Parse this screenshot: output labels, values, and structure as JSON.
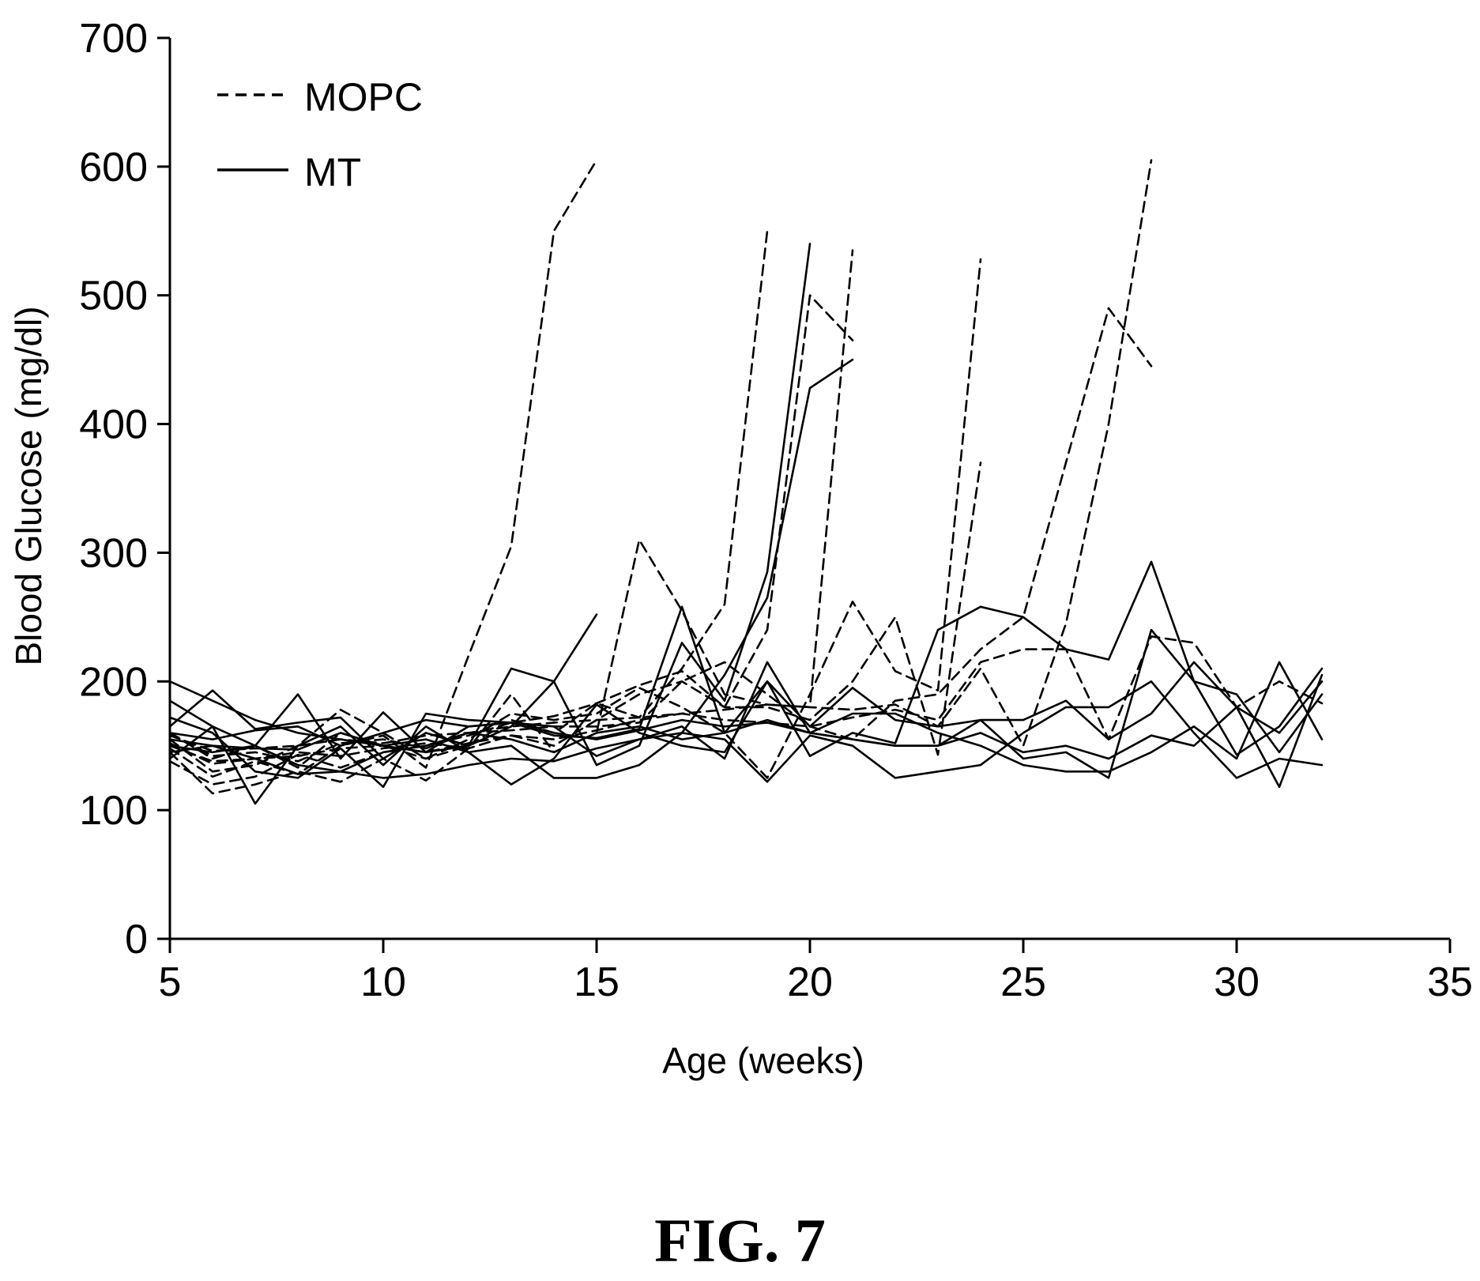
{
  "figure": {
    "caption": "FIG. 7"
  },
  "chart_data": {
    "type": "line",
    "title": "",
    "xlabel": "Age (weeks)",
    "ylabel": "Blood Glucose (mg/dl)",
    "xlim": [
      5,
      35
    ],
    "ylim": [
      0,
      700
    ],
    "xticks": [
      5,
      10,
      15,
      20,
      25,
      30,
      35
    ],
    "yticks": [
      0,
      100,
      200,
      300,
      400,
      500,
      600,
      700
    ],
    "grid": false,
    "legend": {
      "position": "top-left",
      "entries": [
        {
          "label": "MOPC",
          "style": "dashed"
        },
        {
          "label": "MT",
          "style": "solid"
        }
      ]
    },
    "series": [
      {
        "group": "MOPC",
        "x": [
          5,
          6,
          7,
          8,
          9,
          10,
          11,
          12,
          13,
          14,
          15
        ],
        "y": [
          148,
          126,
          138,
          128,
          150,
          158,
          133,
          220,
          305,
          550,
          605
        ]
      },
      {
        "group": "MOPC",
        "x": [
          5,
          6,
          7,
          8,
          9,
          10,
          11,
          12,
          13,
          14,
          15,
          16,
          17,
          18,
          19
        ],
        "y": [
          160,
          140,
          150,
          133,
          160,
          150,
          140,
          150,
          170,
          160,
          183,
          172,
          210,
          260,
          550
        ]
      },
      {
        "group": "MOPC",
        "x": [
          5,
          6,
          7,
          8,
          9,
          10,
          11,
          12,
          13,
          14,
          15,
          16,
          17,
          18,
          19,
          20,
          21
        ],
        "y": [
          138,
          120,
          126,
          143,
          133,
          145,
          150,
          158,
          168,
          173,
          183,
          197,
          208,
          180,
          240,
          500,
          465
        ]
      },
      {
        "group": "MOPC",
        "x": [
          5,
          6,
          7,
          8,
          9,
          10,
          11,
          12,
          13,
          14,
          15,
          16,
          17,
          18,
          19,
          20,
          21
        ],
        "y": [
          145,
          113,
          120,
          130,
          122,
          140,
          123,
          148,
          190,
          145,
          160,
          310,
          255,
          190,
          182,
          180,
          535
        ]
      },
      {
        "group": "MOPC",
        "x": [
          5,
          6,
          7,
          8,
          9,
          10,
          11,
          12,
          13,
          14,
          15,
          16,
          17,
          18,
          19,
          20,
          21,
          22,
          23,
          24
        ],
        "y": [
          155,
          130,
          135,
          150,
          178,
          160,
          140,
          155,
          175,
          170,
          175,
          195,
          180,
          160,
          125,
          190,
          262,
          208,
          193,
          528
        ]
      },
      {
        "group": "MOPC",
        "x": [
          5,
          6,
          7,
          8,
          9,
          10,
          11,
          12,
          13,
          14,
          15,
          16,
          17,
          18,
          19,
          20,
          21,
          22,
          23,
          24
        ],
        "y": [
          150,
          138,
          140,
          145,
          142,
          148,
          152,
          148,
          158,
          150,
          170,
          190,
          200,
          180,
          180,
          170,
          200,
          250,
          143,
          370
        ]
      },
      {
        "group": "MOPC",
        "x": [
          5,
          6,
          7,
          8,
          9,
          10,
          11,
          12,
          13,
          14,
          15,
          16,
          17,
          18,
          19,
          20,
          21,
          22,
          23,
          24,
          25,
          26,
          27,
          28
        ],
        "y": [
          160,
          142,
          145,
          138,
          152,
          155,
          148,
          160,
          162,
          165,
          165,
          168,
          200,
          215,
          190,
          165,
          155,
          185,
          190,
          225,
          250,
          370,
          490,
          445
        ]
      },
      {
        "group": "MOPC",
        "x": [
          5,
          6,
          7,
          8,
          9,
          10,
          11,
          12,
          13,
          14,
          15,
          16,
          17,
          18,
          19,
          20,
          21,
          22,
          23,
          24,
          25,
          26,
          27,
          28
        ],
        "y": [
          152,
          136,
          140,
          142,
          148,
          150,
          145,
          152,
          158,
          155,
          162,
          170,
          175,
          178,
          182,
          180,
          178,
          182,
          165,
          210,
          150,
          245,
          400,
          605
        ]
      },
      {
        "group": "MOPC",
        "x": [
          5,
          6,
          7,
          8,
          9,
          10,
          11,
          12,
          13,
          14,
          15,
          16,
          17,
          18,
          19,
          20,
          21,
          22,
          23,
          24,
          25,
          26,
          27,
          28,
          29,
          30,
          31,
          32
        ],
        "y": [
          158,
          146,
          148,
          150,
          155,
          152,
          158,
          160,
          165,
          168,
          170,
          172,
          175,
          170,
          168,
          165,
          172,
          178,
          170,
          215,
          225,
          225,
          155,
          235,
          230,
          180,
          200,
          183
        ]
      },
      {
        "group": "MT",
        "x": [
          5,
          6,
          7,
          8,
          9,
          10,
          11,
          12,
          13,
          14,
          15
        ],
        "y": [
          200,
          185,
          170,
          160,
          155,
          150,
          145,
          150,
          165,
          200,
          252
        ]
      },
      {
        "group": "MT",
        "x": [
          5,
          6,
          7,
          8,
          9,
          10,
          11,
          12,
          13,
          14,
          15,
          16,
          17,
          18,
          19,
          20,
          21
        ],
        "y": [
          185,
          165,
          150,
          135,
          130,
          125,
          128,
          135,
          140,
          138,
          148,
          155,
          160,
          205,
          265,
          428,
          450
        ]
      },
      {
        "group": "MT",
        "x": [
          5,
          6,
          7,
          8,
          9,
          10,
          11,
          12,
          13,
          14,
          15,
          16,
          17,
          18,
          19,
          20
        ],
        "y": [
          165,
          193,
          163,
          168,
          172,
          140,
          160,
          150,
          210,
          200,
          135,
          150,
          230,
          185,
          285,
          540
        ]
      },
      {
        "group": "MT",
        "x": [
          5,
          6,
          7,
          8,
          9,
          10,
          11,
          12,
          13,
          14,
          15,
          16,
          17,
          18,
          19,
          20,
          21,
          22,
          23,
          24,
          25,
          26,
          27,
          28,
          29,
          30,
          31,
          32
        ],
        "y": [
          150,
          145,
          150,
          190,
          140,
          176,
          145,
          165,
          168,
          158,
          156,
          163,
          258,
          160,
          200,
          142,
          160,
          152,
          240,
          258,
          250,
          225,
          217,
          293,
          200,
          143,
          165,
          210
        ]
      },
      {
        "group": "MT",
        "x": [
          5,
          6,
          7,
          8,
          9,
          10,
          11,
          12,
          13,
          14,
          15,
          16,
          17,
          18,
          19,
          20,
          21,
          22,
          23,
          24,
          25,
          26,
          27,
          28,
          29,
          30,
          31,
          32
        ],
        "y": [
          140,
          165,
          105,
          150,
          165,
          135,
          165,
          145,
          120,
          140,
          182,
          160,
          150,
          145,
          200,
          165,
          195,
          170,
          165,
          170,
          140,
          145,
          125,
          240,
          200,
          190,
          145,
          190
        ]
      },
      {
        "group": "MT",
        "x": [
          5,
          6,
          7,
          8,
          9,
          10,
          11,
          12,
          13,
          14,
          15,
          16,
          17,
          18,
          19,
          20,
          21,
          22,
          23,
          24,
          25,
          26,
          27,
          28,
          29,
          30,
          31,
          32
        ],
        "y": [
          155,
          150,
          148,
          147,
          160,
          150,
          155,
          145,
          150,
          125,
          125,
          135,
          160,
          155,
          122,
          158,
          150,
          125,
          130,
          135,
          160,
          180,
          180,
          200,
          160,
          125,
          140,
          135
        ]
      },
      {
        "group": "MT",
        "x": [
          5,
          6,
          7,
          8,
          9,
          10,
          11,
          12,
          13,
          14,
          15,
          16,
          17,
          18,
          19,
          20,
          21,
          22,
          23,
          24,
          25,
          26,
          27,
          28,
          29,
          30,
          31,
          32
        ],
        "y": [
          172,
          160,
          130,
          125,
          148,
          118,
          175,
          170,
          168,
          165,
          142,
          155,
          165,
          140,
          215,
          160,
          175,
          175,
          160,
          150,
          135,
          130,
          130,
          145,
          165,
          140,
          215,
          155
        ]
      },
      {
        "group": "MT",
        "x": [
          5,
          6,
          7,
          8,
          9,
          10,
          11,
          12,
          13,
          14,
          15,
          16,
          17,
          18,
          19,
          20,
          21,
          22,
          23,
          24,
          25,
          26,
          27,
          28,
          29,
          30,
          31,
          32
        ],
        "y": [
          160,
          155,
          162,
          165,
          150,
          160,
          170,
          165,
          168,
          160,
          155,
          162,
          170,
          165,
          168,
          160,
          155,
          150,
          150,
          170,
          170,
          185,
          155,
          175,
          215,
          180,
          118,
          205
        ]
      },
      {
        "group": "MT",
        "x": [
          5,
          6,
          7,
          8,
          9,
          10,
          11,
          12,
          13,
          14,
          15,
          16,
          17,
          18,
          19,
          20,
          21,
          22,
          23,
          24,
          25,
          26,
          27,
          28,
          29,
          30,
          31,
          32
        ],
        "y": [
          145,
          150,
          140,
          128,
          130,
          145,
          150,
          160,
          155,
          145,
          160,
          165,
          155,
          160,
          170,
          160,
          155,
          150,
          150,
          160,
          145,
          150,
          140,
          158,
          150,
          180,
          160,
          200
        ]
      }
    ]
  }
}
